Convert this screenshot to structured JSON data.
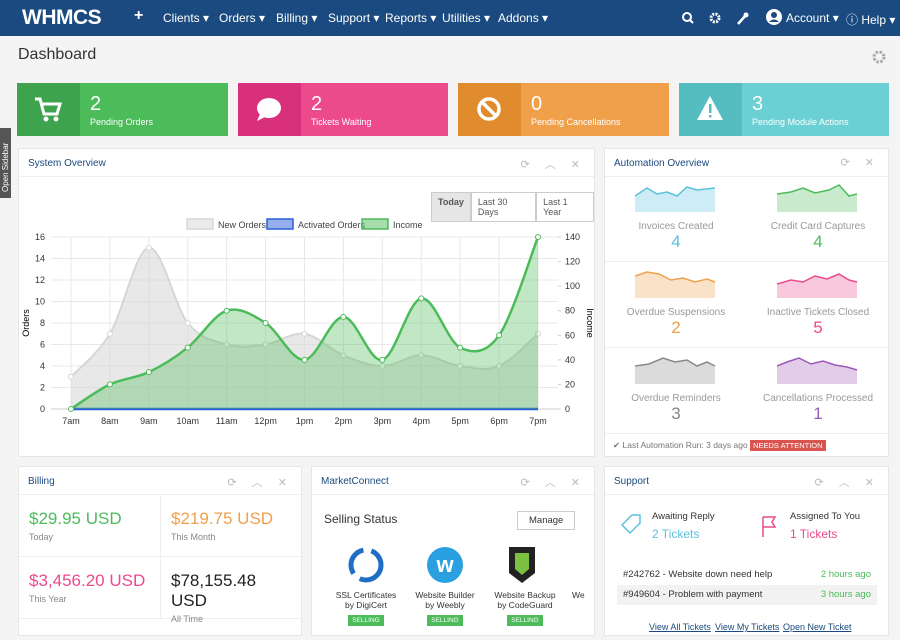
{
  "nav": {
    "logo": "WHMCS",
    "add": "+",
    "menu": [
      "Clients",
      "Orders",
      "Billing",
      "Support",
      "Reports",
      "Utilities",
      "Addons"
    ],
    "account": "Account",
    "help": "Help"
  },
  "sidebar_toggle": "Open Sidebar",
  "page_title": "Dashboard",
  "tiles": [
    {
      "count": 2,
      "label": "Pending Orders"
    },
    {
      "count": 2,
      "label": "Tickets Waiting"
    },
    {
      "count": 0,
      "label": "Pending Cancellations"
    },
    {
      "count": 3,
      "label": "Pending Module Actions"
    }
  ],
  "system_overview": {
    "title": "System Overview",
    "ranges": [
      "Today",
      "Last 30 Days",
      "Last 1 Year"
    ]
  },
  "chart_data": {
    "type": "area",
    "categories": [
      "7am",
      "8am",
      "9am",
      "10am",
      "11am",
      "12pm",
      "1pm",
      "2pm",
      "3pm",
      "4pm",
      "5pm",
      "6pm",
      "7pm"
    ],
    "series": [
      {
        "name": "New Orders",
        "color": "#d6d6d6",
        "values": [
          3,
          7,
          15,
          8,
          6,
          6,
          7,
          5,
          4,
          5,
          4,
          4,
          7
        ]
      },
      {
        "name": "Activated Orders",
        "color": "#2b5fd9",
        "values": [
          0,
          0,
          0,
          0,
          0,
          0,
          0,
          0,
          0,
          0,
          0,
          0,
          0
        ]
      },
      {
        "name": "Income",
        "color": "#4cbb5a",
        "axis": "y2",
        "values": [
          0,
          20,
          30,
          50,
          80,
          70,
          40,
          75,
          40,
          90,
          50,
          60,
          140
        ]
      }
    ],
    "y_label": "Orders",
    "y2_label": "Income",
    "ylim": [
      0,
      16
    ],
    "yticks": [
      0,
      2,
      4,
      6,
      8,
      10,
      12,
      14,
      16
    ],
    "y2lim": [
      0,
      140
    ],
    "y2ticks": [
      0,
      20,
      40,
      60,
      80,
      100,
      120,
      140
    ],
    "grid": true,
    "legend": "top"
  },
  "automation": {
    "title": "Automation Overview",
    "items": [
      {
        "label": "Invoices Created",
        "value": 4
      },
      {
        "label": "Credit Card Captures",
        "value": 4
      },
      {
        "label": "Overdue Suspensions",
        "value": 2
      },
      {
        "label": "Inactive Tickets Closed",
        "value": 5
      },
      {
        "label": "Overdue Reminders",
        "value": 3
      },
      {
        "label": "Cancellations Processed",
        "value": 1
      }
    ],
    "last_run": "Last Automation Run: 3 days ago",
    "status": "NEEDS ATTENTION"
  },
  "billing": {
    "title": "Billing",
    "items": [
      {
        "amount": "$29.95 USD",
        "period": "Today"
      },
      {
        "amount": "$219.75 USD",
        "period": "This Month"
      },
      {
        "amount": "$3,456.20 USD",
        "period": "This Year"
      },
      {
        "amount": "$78,155.48 USD",
        "period": "All Time"
      }
    ]
  },
  "marketconnect": {
    "title": "MarketConnect",
    "subtitle": "Selling Status",
    "button": "Manage",
    "products": [
      {
        "name": "SSL Certificates",
        "vendor": "by DigiCert",
        "status": "SELLING"
      },
      {
        "name": "Website Builder",
        "vendor": "by Weebly",
        "status": "SELLING"
      },
      {
        "name": "Website Backup",
        "vendor": "by CodeGuard",
        "status": "SELLING"
      },
      {
        "name": "We"
      }
    ]
  },
  "support": {
    "title": "Support",
    "awaiting": {
      "label": "Awaiting Reply",
      "count": "2 Tickets"
    },
    "assigned": {
      "label": "Assigned To You",
      "count": "1 Tickets"
    },
    "tickets": [
      {
        "subject": "#242762 - Website down need help",
        "age": "2 hours ago"
      },
      {
        "subject": "#949604 - Problem with payment",
        "age": "3 hours ago"
      }
    ],
    "links": [
      "View All Tickets",
      "View My Tickets",
      "Open New Ticket"
    ]
  }
}
